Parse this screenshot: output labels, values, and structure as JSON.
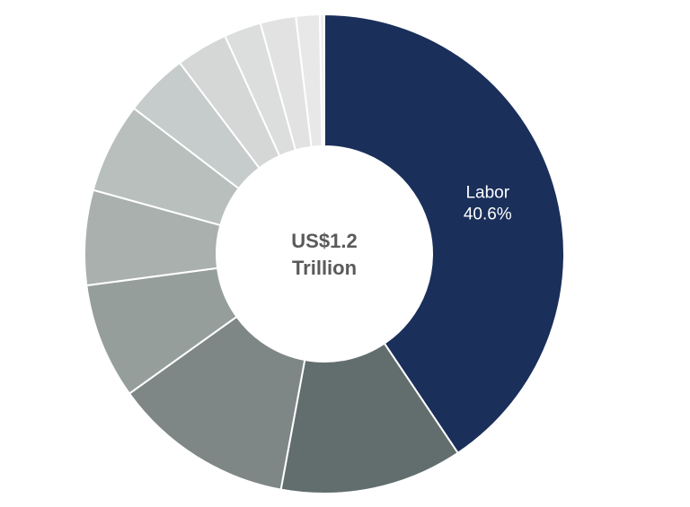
{
  "chart_data": {
    "type": "donut",
    "center_label": [
      "US$1.2",
      "Trillion"
    ],
    "categories": [
      "Labor",
      null,
      null,
      null,
      null,
      null,
      null,
      null,
      null,
      null,
      null,
      null
    ],
    "values": [
      40.6,
      12.3,
      12.2,
      7.8,
      6.4,
      6.1,
      4.3,
      3.5,
      2.5,
      2.4,
      1.6,
      0.3
    ],
    "value_labels": [
      "40.6%",
      null,
      null,
      null,
      null,
      null,
      null,
      null,
      null,
      null,
      null,
      null
    ],
    "colors": [
      "#1a2f5a",
      "#616e6d",
      "#7e8786",
      "#969e9c",
      "#a9b0ae",
      "#b8bfbd",
      "#c6cccb",
      "#d5d7d7",
      "#dcdddd",
      "#e2e2e2",
      "#e8e8e8",
      "#eeeeee"
    ]
  }
}
